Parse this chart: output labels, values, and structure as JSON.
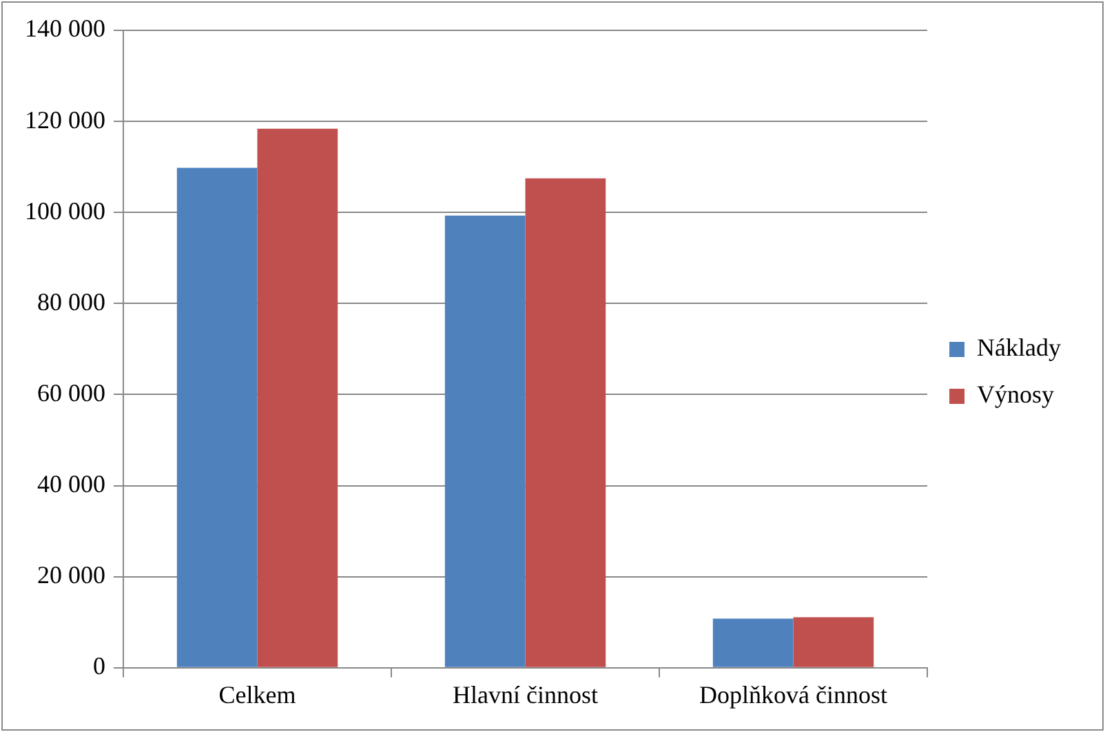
{
  "chart_data": {
    "type": "bar",
    "categories": [
      "Celkem",
      "Hlavní činnost",
      "Doplňková činnost"
    ],
    "series": [
      {
        "name": "Náklady",
        "color": "#4f81bd",
        "values": [
          109800,
          99300,
          10800
        ]
      },
      {
        "name": "Výnosy",
        "color": "#c0504d",
        "values": [
          118400,
          107500,
          11100
        ]
      }
    ],
    "ylim": [
      0,
      140000
    ],
    "yticks": [
      0,
      20000,
      40000,
      60000,
      80000,
      100000,
      120000,
      140000
    ],
    "grid": "y",
    "legend": "right"
  }
}
